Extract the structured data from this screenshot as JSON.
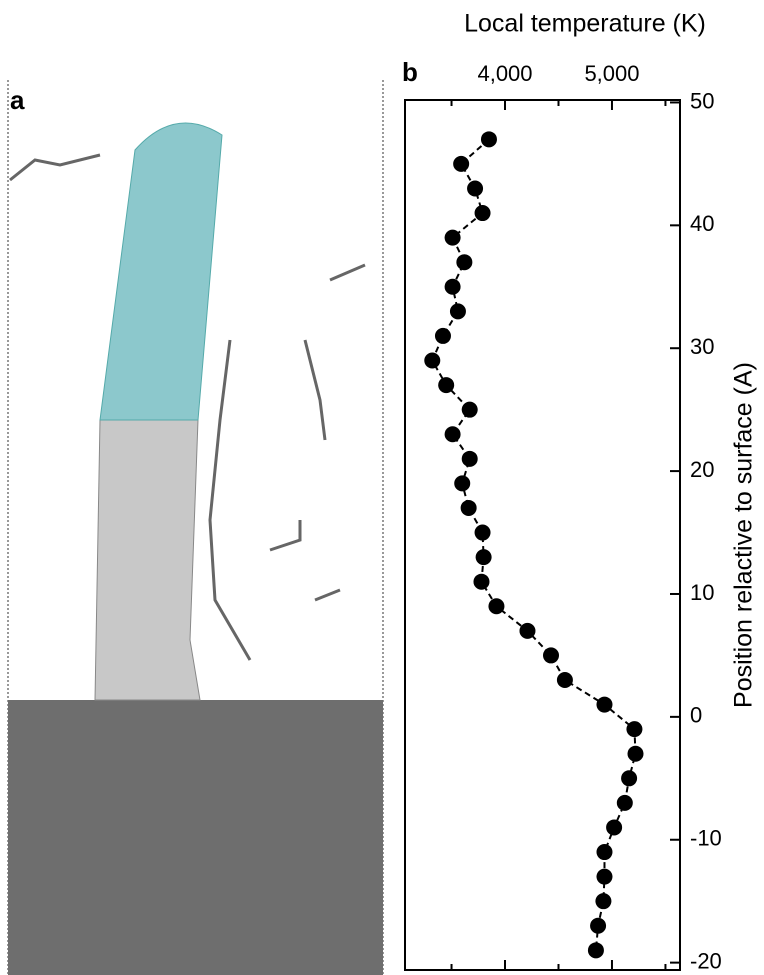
{
  "image_panel": {
    "label": "a"
  },
  "chart_data": {
    "type": "line",
    "panel_label": "b",
    "title": "Local temperature (K)",
    "y_label": "Position relactive to surface (A)",
    "x": [
      3850,
      3590,
      3720,
      3790,
      3510,
      3620,
      3510,
      3560,
      3420,
      3320,
      3450,
      3670,
      3510,
      3670,
      3600,
      3660,
      3790,
      3800,
      3780,
      3920,
      4210,
      4430,
      4560,
      4930,
      5210,
      5220,
      5160,
      5120,
      5020,
      4930,
      4930,
      4920,
      4870,
      4850
    ],
    "values": [
      47,
      45,
      43,
      41,
      39,
      37,
      35,
      33,
      31,
      29,
      27,
      25,
      23,
      21,
      19,
      17,
      15,
      13,
      11,
      9,
      7,
      5,
      3,
      1,
      -1,
      -3,
      -5,
      -7,
      -9,
      -11,
      -13,
      -15,
      -17,
      -19
    ],
    "color": "#000000",
    "xlim": [
      3065,
      5636
    ],
    "xticks": [
      {
        "value": 4000,
        "label": "4,000"
      },
      {
        "value": 5000,
        "label": "5,000"
      }
    ],
    "xminorticks": [
      3500,
      4500,
      5500
    ],
    "ylim": [
      -20.6,
      50.2
    ],
    "yticks": [
      -20,
      -10,
      0,
      10,
      20,
      30,
      40,
      50
    ]
  }
}
